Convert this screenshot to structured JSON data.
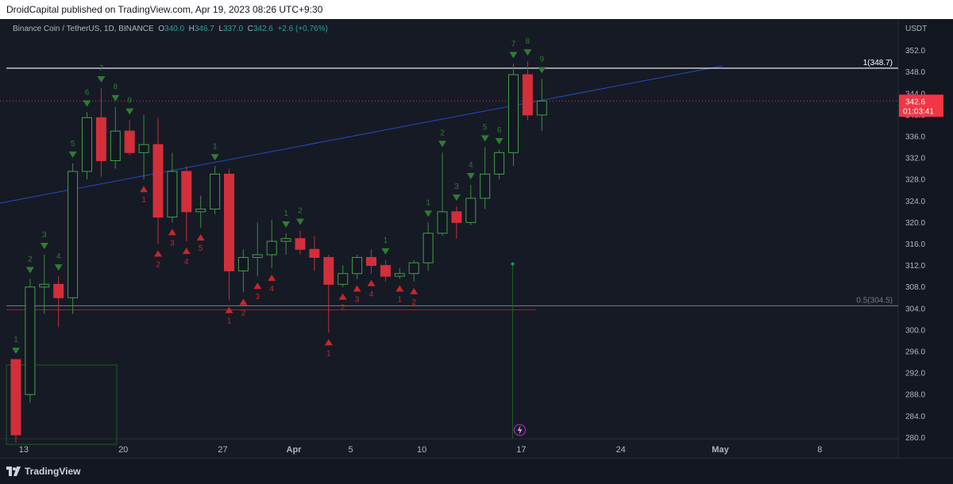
{
  "header": {
    "publisher_text": "DroidCapital published on TradingView.com, Apr 19, 2023 08:26 UTC+9:30"
  },
  "legend": {
    "symbol": "Binance Coin / TetherUS, 1D, BINANCE",
    "o_label": "O",
    "o_value": "340.0",
    "h_label": "H",
    "h_value": "346.7",
    "l_label": "L",
    "l_value": "337.0",
    "c_label": "C",
    "c_value": "342.6",
    "change": "+2.6 (+0.76%)"
  },
  "footer": {
    "brand": "TradingView"
  },
  "colors": {
    "up": "#089981",
    "down": "#d32f3b",
    "td_up": "#1b5e20",
    "td_down": "#b71c1c",
    "price_tag": "#f23645"
  },
  "chart_data": {
    "type": "candlestick",
    "y_axis_unit": "USDT",
    "ylim": [
      279,
      357
    ],
    "y_ticks": [
      "280.0",
      "284.0",
      "288.0",
      "292.0",
      "296.0",
      "300.0",
      "304.0",
      "308.0",
      "312.0",
      "316.0",
      "320.0",
      "324.0",
      "328.0",
      "332.0",
      "336.0",
      "340.0",
      "344.0",
      "348.0",
      "352.0"
    ],
    "x_ticks": [
      "13",
      "20",
      "27",
      "Apr",
      "5",
      "10",
      "17",
      "24",
      "May",
      "8"
    ],
    "current_price_label": "342.6",
    "countdown_label": "01:03:41",
    "fib_levels": [
      {
        "label": "1(348.7)",
        "value": 348.7
      },
      {
        "label": "0.5(304.5)",
        "value": 304.5
      }
    ],
    "candles": [
      {
        "date": "2023-03-12",
        "o": 294.5,
        "h": 294.5,
        "l": 279,
        "c": 280.5
      },
      {
        "date": "2023-03-13",
        "o": 288,
        "h": 309.5,
        "l": 286.5,
        "c": 308
      },
      {
        "date": "2023-03-14",
        "o": 308,
        "h": 314,
        "l": 303,
        "c": 308.5
      },
      {
        "date": "2023-03-15",
        "o": 308.5,
        "h": 310,
        "l": 300.5,
        "c": 306
      },
      {
        "date": "2023-03-16",
        "o": 306,
        "h": 331,
        "l": 303,
        "c": 329.5
      },
      {
        "date": "2023-03-17",
        "o": 329.5,
        "h": 340.5,
        "l": 328,
        "c": 339.5
      },
      {
        "date": "2023-03-18",
        "o": 339.5,
        "h": 345,
        "l": 328.5,
        "c": 331.5
      },
      {
        "date": "2023-03-19",
        "o": 331.5,
        "h": 341.5,
        "l": 330,
        "c": 337
      },
      {
        "date": "2023-03-20",
        "o": 337,
        "h": 339,
        "l": 332.5,
        "c": 333
      },
      {
        "date": "2023-03-21",
        "o": 333,
        "h": 340,
        "l": 328,
        "c": 334.5
      },
      {
        "date": "2023-03-22",
        "o": 334.5,
        "h": 339.5,
        "l": 316,
        "c": 321
      },
      {
        "date": "2023-03-23",
        "o": 321,
        "h": 333,
        "l": 320,
        "c": 329.5
      },
      {
        "date": "2023-03-24",
        "o": 329.5,
        "h": 330.5,
        "l": 316.5,
        "c": 322
      },
      {
        "date": "2023-03-25",
        "o": 322,
        "h": 325,
        "l": 319,
        "c": 322.5
      },
      {
        "date": "2023-03-26",
        "o": 322.5,
        "h": 330.5,
        "l": 321.5,
        "c": 329
      },
      {
        "date": "2023-03-27",
        "o": 329,
        "h": 330,
        "l": 305.5,
        "c": 311
      },
      {
        "date": "2023-03-28",
        "o": 311,
        "h": 315,
        "l": 307,
        "c": 313.5
      },
      {
        "date": "2023-03-29",
        "o": 313.5,
        "h": 320,
        "l": 310,
        "c": 314
      },
      {
        "date": "2023-03-30",
        "o": 314,
        "h": 320.5,
        "l": 311.5,
        "c": 316.5
      },
      {
        "date": "2023-03-31",
        "o": 316.5,
        "h": 318,
        "l": 314,
        "c": 317
      },
      {
        "date": "2023-04-01",
        "o": 317,
        "h": 318.5,
        "l": 314,
        "c": 315
      },
      {
        "date": "2023-04-02",
        "o": 315,
        "h": 317.5,
        "l": 311,
        "c": 313.5
      },
      {
        "date": "2023-04-03",
        "o": 313.5,
        "h": 314,
        "l": 299.5,
        "c": 308.5
      },
      {
        "date": "2023-04-04",
        "o": 308.5,
        "h": 312,
        "l": 308,
        "c": 310.5
      },
      {
        "date": "2023-04-05",
        "o": 310.5,
        "h": 314,
        "l": 309.5,
        "c": 313.5
      },
      {
        "date": "2023-04-06",
        "o": 313.5,
        "h": 315,
        "l": 310.5,
        "c": 312
      },
      {
        "date": "2023-04-07",
        "o": 312,
        "h": 313,
        "l": 309,
        "c": 310
      },
      {
        "date": "2023-04-08",
        "o": 310,
        "h": 311.5,
        "l": 309.5,
        "c": 310.5
      },
      {
        "date": "2023-04-09",
        "o": 310.5,
        "h": 313,
        "l": 309,
        "c": 312.5
      },
      {
        "date": "2023-04-10",
        "o": 312.5,
        "h": 320,
        "l": 311,
        "c": 318
      },
      {
        "date": "2023-04-11",
        "o": 318,
        "h": 333,
        "l": 317.5,
        "c": 322
      },
      {
        "date": "2023-04-12",
        "o": 322,
        "h": 323,
        "l": 317,
        "c": 320
      },
      {
        "date": "2023-04-13",
        "o": 320,
        "h": 327,
        "l": 319.5,
        "c": 324.5
      },
      {
        "date": "2023-04-14",
        "o": 324.5,
        "h": 334,
        "l": 322.5,
        "c": 329
      },
      {
        "date": "2023-04-15",
        "o": 329,
        "h": 333.5,
        "l": 328,
        "c": 333
      },
      {
        "date": "2023-04-16",
        "o": 333,
        "h": 349.5,
        "l": 330.5,
        "c": 347.5
      },
      {
        "date": "2023-04-17",
        "o": 347.5,
        "h": 350,
        "l": 339,
        "c": 340
      },
      {
        "date": "2023-04-18",
        "o": 340,
        "h": 346.7,
        "l": 337,
        "c": 342.6
      }
    ],
    "td_up": [
      {
        "i": 0,
        "n": "1"
      },
      {
        "i": 1,
        "n": "2"
      },
      {
        "i": 2,
        "n": "3"
      },
      {
        "i": 3,
        "n": "4"
      },
      {
        "i": 4,
        "n": "5"
      },
      {
        "i": 5,
        "n": "6"
      },
      {
        "i": 6,
        "n": "7"
      },
      {
        "i": 7,
        "n": "8"
      },
      {
        "i": 8,
        "n": "9"
      },
      {
        "i": 14,
        "n": "1"
      },
      {
        "i": 19,
        "n": "1"
      },
      {
        "i": 20,
        "n": "2"
      },
      {
        "i": 26,
        "n": "1"
      },
      {
        "i": 29,
        "n": "1"
      },
      {
        "i": 30,
        "n": "2"
      },
      {
        "i": 31,
        "n": "3"
      },
      {
        "i": 32,
        "n": "4"
      },
      {
        "i": 33,
        "n": "5"
      },
      {
        "i": 34,
        "n": "6"
      },
      {
        "i": 35,
        "n": "7"
      },
      {
        "i": 36,
        "n": "8"
      },
      {
        "i": 37,
        "n": "9"
      }
    ],
    "td_down": [
      {
        "i": 9,
        "n": "1"
      },
      {
        "i": 10,
        "n": "2"
      },
      {
        "i": 11,
        "n": "3"
      },
      {
        "i": 12,
        "n": "4"
      },
      {
        "i": 13,
        "n": "5"
      },
      {
        "i": 15,
        "n": "1"
      },
      {
        "i": 16,
        "n": "2"
      },
      {
        "i": 17,
        "n": "3"
      },
      {
        "i": 18,
        "n": "4"
      },
      {
        "i": 22,
        "n": "1"
      },
      {
        "i": 23,
        "n": "2"
      },
      {
        "i": 24,
        "n": "3"
      },
      {
        "i": 25,
        "n": "4"
      },
      {
        "i": 27,
        "n": "1"
      },
      {
        "i": 28,
        "n": "2"
      }
    ]
  }
}
